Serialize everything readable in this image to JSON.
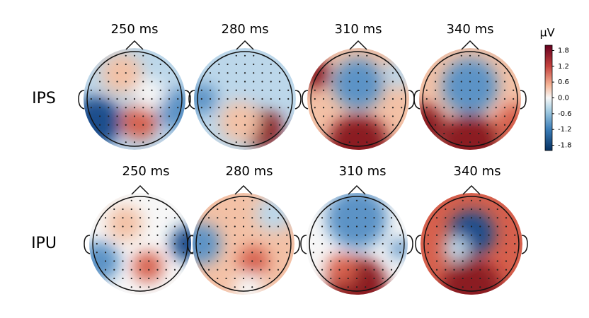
{
  "rows": [
    {
      "label": "IPS",
      "titles": [
        "250 ms",
        "280 ms",
        "310 ms",
        "340 ms"
      ]
    },
    {
      "label": "IPU",
      "titles": [
        "250 ms",
        "280 ms",
        "310 ms",
        "340 ms"
      ]
    }
  ],
  "colorbar": {
    "label": "µV",
    "lim": [
      -2,
      2
    ],
    "ticks": [
      1.8,
      1.2,
      0.6,
      {
        "value": 0,
        "label": "0.0"
      },
      -0.6,
      -1.2,
      -1.8
    ]
  }
}
